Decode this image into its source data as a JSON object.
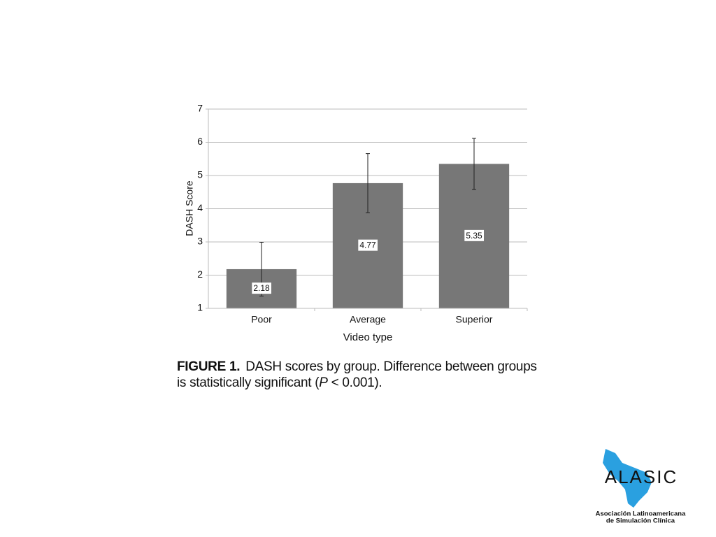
{
  "chart_data": {
    "type": "bar",
    "categories": [
      "Poor",
      "Average",
      "Superior"
    ],
    "values": [
      2.18,
      4.77,
      5.35
    ],
    "errors": [
      0.81,
      0.89,
      0.77
    ],
    "color": "#777777",
    "ylim": [
      1,
      7
    ],
    "yticks": [
      1,
      2,
      3,
      4,
      5,
      6,
      7
    ],
    "grid": true,
    "ylabel": "DASH Score",
    "xlabel": "Video type"
  },
  "caption": {
    "label": "FIGURE 1.",
    "text": "DASH scores by group. Difference between groups",
    "text2": "is statistically significant (",
    "italic": "P",
    "text3": " < 0.001)."
  },
  "logo": {
    "name": "ALASIC",
    "line1": "Asociación Latinoamericana",
    "line2": "de Simulación Clínica"
  }
}
